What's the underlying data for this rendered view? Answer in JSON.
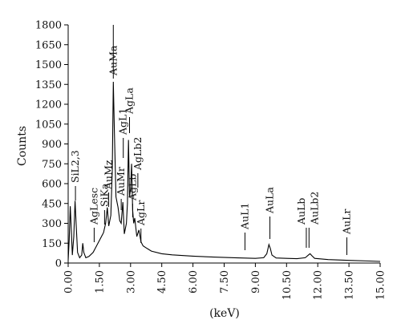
{
  "chart_data": {
    "type": "line",
    "title": "",
    "xlabel": "(keV)",
    "ylabel": "Counts",
    "xlim": [
      0,
      15
    ],
    "ylim": [
      0,
      1800
    ],
    "x_ticks": [
      "0.00",
      "1.50",
      "3.00",
      "4.50",
      "6.00",
      "7.50",
      "9.00",
      "10.50",
      "12.00",
      "13.50",
      "15.00"
    ],
    "y_ticks": [
      "0",
      "150",
      "300",
      "450",
      "600",
      "750",
      "900",
      "1050",
      "1200",
      "1350",
      "1500",
      "1650",
      "1800"
    ],
    "grid": false,
    "legend": "none",
    "line_color": "#000000",
    "series": [
      {
        "values": [
          [
            0.0,
            20
          ],
          [
            0.05,
            180
          ],
          [
            0.1,
            430
          ],
          [
            0.15,
            250
          ],
          [
            0.2,
            60
          ],
          [
            0.27,
            200
          ],
          [
            0.33,
            470
          ],
          [
            0.38,
            300
          ],
          [
            0.45,
            80
          ],
          [
            0.55,
            40
          ],
          [
            0.65,
            60
          ],
          [
            0.7,
            150
          ],
          [
            0.75,
            80
          ],
          [
            0.85,
            40
          ],
          [
            1.0,
            50
          ],
          [
            1.2,
            80
          ],
          [
            1.4,
            140
          ],
          [
            1.6,
            200
          ],
          [
            1.7,
            230
          ],
          [
            1.8,
            300
          ],
          [
            1.88,
            420
          ],
          [
            1.95,
            280
          ],
          [
            2.05,
            360
          ],
          [
            2.12,
            700
          ],
          [
            2.17,
            1370
          ],
          [
            2.22,
            1000
          ],
          [
            2.3,
            500
          ],
          [
            2.4,
            420
          ],
          [
            2.48,
            320
          ],
          [
            2.55,
            300
          ],
          [
            2.63,
            460
          ],
          [
            2.7,
            220
          ],
          [
            2.8,
            300
          ],
          [
            2.85,
            450
          ],
          [
            2.9,
            930
          ],
          [
            2.95,
            500
          ],
          [
            3.0,
            560
          ],
          [
            3.05,
            750
          ],
          [
            3.1,
            400
          ],
          [
            3.15,
            300
          ],
          [
            3.2,
            340
          ],
          [
            3.3,
            200
          ],
          [
            3.4,
            250
          ],
          [
            3.5,
            160
          ],
          [
            3.6,
            130
          ],
          [
            3.8,
            110
          ],
          [
            4.0,
            90
          ],
          [
            4.5,
            70
          ],
          [
            5.0,
            62
          ],
          [
            6.0,
            52
          ],
          [
            7.0,
            45
          ],
          [
            8.0,
            40
          ],
          [
            9.0,
            35
          ],
          [
            9.4,
            40
          ],
          [
            9.55,
            70
          ],
          [
            9.65,
            140
          ],
          [
            9.72,
            110
          ],
          [
            9.8,
            60
          ],
          [
            10.0,
            38
          ],
          [
            10.5,
            35
          ],
          [
            11.0,
            33
          ],
          [
            11.4,
            40
          ],
          [
            11.55,
            60
          ],
          [
            11.63,
            70
          ],
          [
            11.72,
            55
          ],
          [
            11.85,
            35
          ],
          [
            12.5,
            26
          ],
          [
            13.5,
            20
          ],
          [
            14.5,
            15
          ],
          [
            15.0,
            12
          ]
        ]
      }
    ],
    "annotations": [
      {
        "label": "SiL2,3",
        "x": 0.35
      },
      {
        "label": "AgLesc",
        "x": 1.25
      },
      {
        "label": "SiKa",
        "x": 1.75
      },
      {
        "label": "AuMz",
        "x": 1.95
      },
      {
        "label": "AuMa",
        "x": 2.17
      },
      {
        "label": "AuMr",
        "x": 2.55
      },
      {
        "label": "AgL1",
        "x": 2.65
      },
      {
        "label": "AgLa",
        "x": 2.95
      },
      {
        "label": "AgLb",
        "x": 3.1
      },
      {
        "label": "AgLb2",
        "x": 3.35
      },
      {
        "label": "AgLr",
        "x": 3.5
      },
      {
        "label": "AuL1",
        "x": 8.5
      },
      {
        "label": "AuLa",
        "x": 9.7
      },
      {
        "label": "AuLb",
        "x": 11.45
      },
      {
        "label": "AuLb2",
        "x": 11.58
      },
      {
        "label": "AuLr",
        "x": 13.4
      }
    ]
  }
}
